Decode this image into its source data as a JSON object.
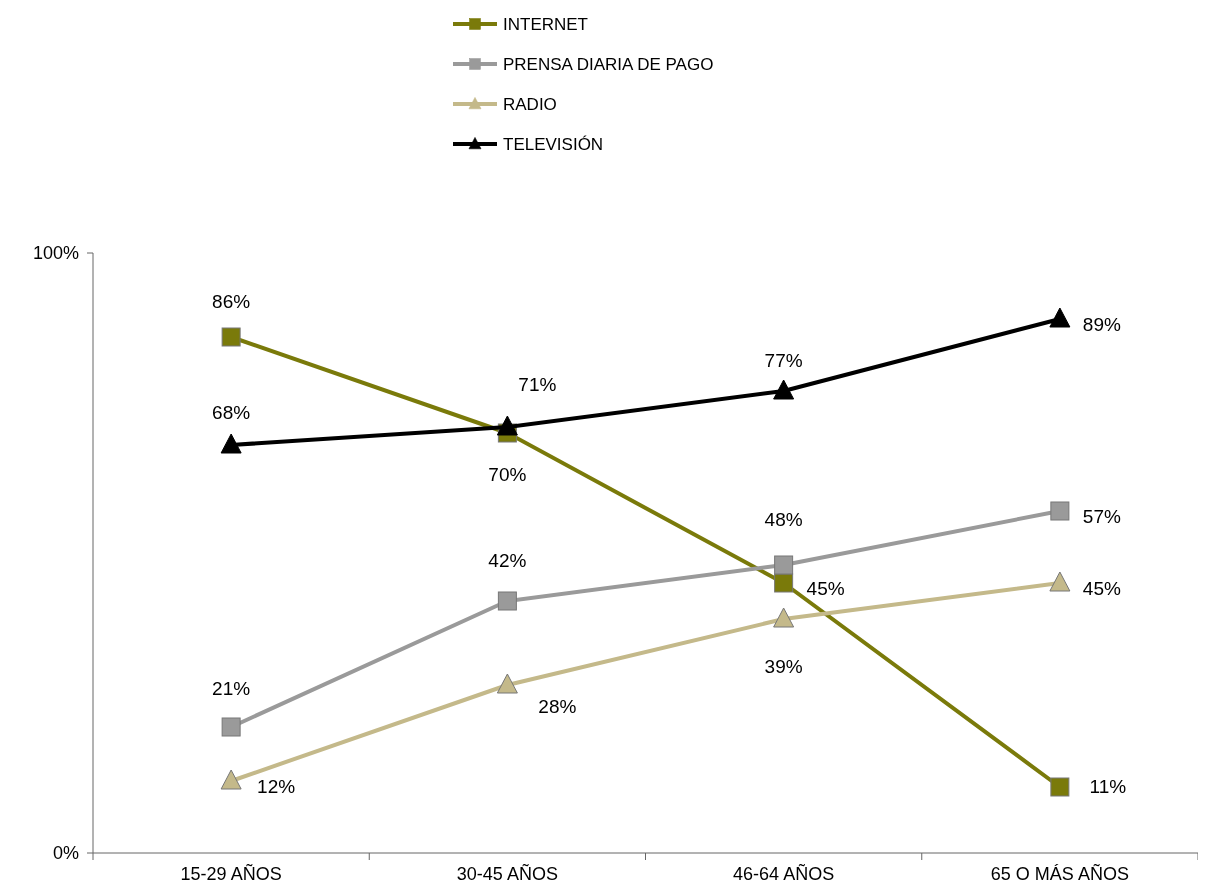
{
  "chart_data": {
    "type": "line",
    "categories": [
      "15-29 AÑOS",
      "30-45 AÑOS",
      "46-64 AÑOS",
      "65 O MÁS AÑOS"
    ],
    "series": [
      {
        "name": "INTERNET",
        "color": "#7a7a0a",
        "marker": "square",
        "values": [
          86,
          70,
          45,
          11
        ],
        "value_labels": [
          "86%",
          "70%",
          "45%",
          "11%"
        ]
      },
      {
        "name": "PRENSA DIARIA DE PAGO",
        "color": "#9a9a9a",
        "marker": "square",
        "values": [
          21,
          42,
          48,
          57
        ],
        "value_labels": [
          "21%",
          "42%",
          "48%",
          "57%"
        ]
      },
      {
        "name": "RADIO",
        "color": "#c4b98a",
        "marker": "triangle",
        "values": [
          12,
          28,
          39,
          45
        ],
        "value_labels": [
          "12%",
          "28%",
          "39%",
          "45%"
        ]
      },
      {
        "name": "TELEVISIÓN",
        "color": "#000000",
        "marker": "triangle",
        "values": [
          68,
          71,
          77,
          89
        ],
        "value_labels": [
          "68%",
          "71%",
          "77%",
          "89%"
        ]
      }
    ],
    "ylim": [
      0,
      100
    ],
    "yticks": [
      {
        "value": 0,
        "label": "0%"
      },
      {
        "value": 100,
        "label": "100%"
      }
    ],
    "grid": false,
    "legend": "top",
    "line_style": "solid"
  }
}
